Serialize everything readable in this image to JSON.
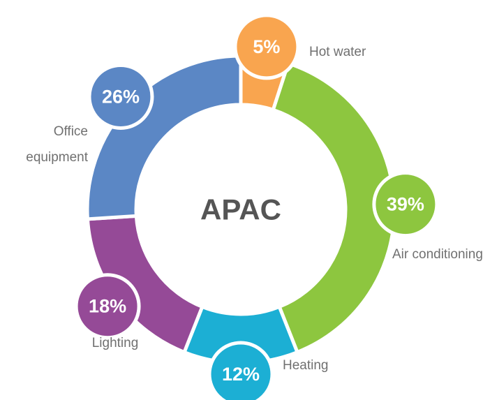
{
  "chart_data": {
    "type": "donut",
    "title": "APAC",
    "categories": [
      "Hot water",
      "Air conditioning",
      "Heating",
      "Lighting",
      "Office equipment"
    ],
    "values": [
      5,
      39,
      12,
      18,
      26
    ],
    "value_labels": [
      "5%",
      "39%",
      "12%",
      "18%",
      "26%"
    ],
    "colors": [
      "#f9a54f",
      "#8dc63f",
      "#1cafd4",
      "#954a97",
      "#5b87c5"
    ]
  }
}
